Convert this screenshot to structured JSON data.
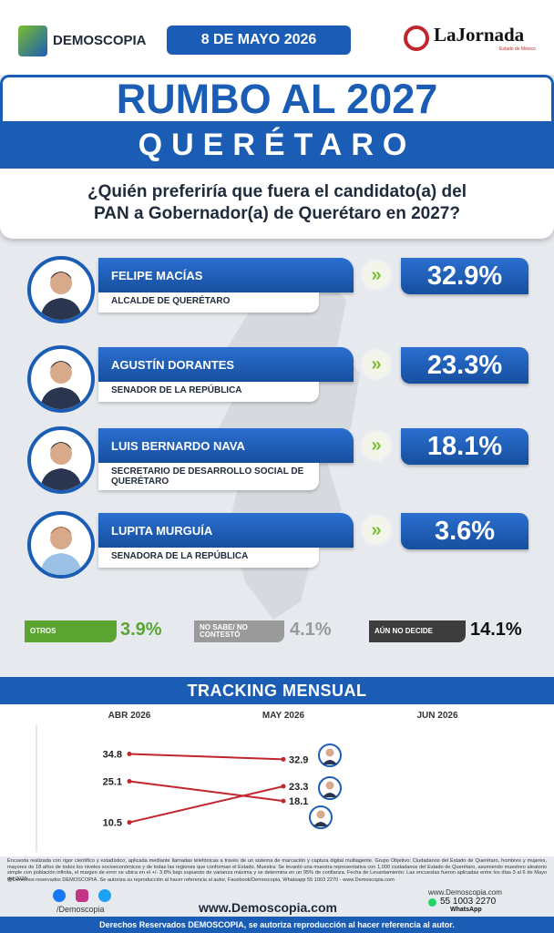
{
  "header": {
    "brand": "DEMOSCOPIA",
    "date": "8 DE MAYO 2026",
    "partner": "LaJornada",
    "partner_sub": "Estado de México",
    "title": "RUMBO AL 2027",
    "subtitle": "QUERÉTARO",
    "question": "¿Quién preferiría que fuera el candidato(a) del PAN a Gobernador(a) de Querétaro en 2027?"
  },
  "candidates": [
    {
      "name": "FELIPE MACÍAS",
      "role": "ALCALDE DE QUERÉTARO",
      "percent": "32.9%"
    },
    {
      "name": "AGUSTÍN DORANTES",
      "role": "SENADOR DE LA REPÚBLICA",
      "percent": "23.3%"
    },
    {
      "name": "LUIS BERNARDO NAVA",
      "role": "SECRETARIO DE DESARROLLO SOCIAL DE QUERÉTARO",
      "percent": "18.1%"
    },
    {
      "name": "LUPITA MURGUÍA",
      "role": "SENADORA DE LA REPÚBLICA",
      "percent": "3.6%"
    }
  ],
  "others": [
    {
      "label": "OTROS",
      "percent": "3.9%"
    },
    {
      "label": "NO SABE/ NO CONTESTÓ",
      "percent": "4.1%"
    },
    {
      "label": "AÚN NO DECIDE",
      "percent": "14.1%"
    }
  ],
  "chart_data": {
    "type": "line",
    "title": "TRACKING MENSUAL",
    "categories": [
      "ABR 2026",
      "MAY 2026",
      "JUN 2026"
    ],
    "series": [
      {
        "color": "#c0262c",
        "values": [
          34.8,
          32.9,
          null
        ]
      },
      {
        "color": "#c0262c",
        "values": [
          25.1,
          18.1,
          null
        ]
      },
      {
        "color": "#c0262c",
        "values": [
          10.5,
          23.3,
          null
        ]
      }
    ],
    "ylim": [
      0,
      45
    ]
  },
  "footer": {
    "methodology": "Encuesta realizada con rigor científico y estadístico, aplicada mediante llamadas telefónicas a través de un sistema de marcación y captura digital multiagente. Grupo Objetivo: Ciudadanos del Estado de Querétaro, hombres y mujeres, mayores de 18 años de todos los niveles socioeconómicos y de todas las regiones que conforman el Estado. Muestra: Se levantó una muestra representativa con 1,000 ciudadanos del Estado de Querétaro, asumiendo muestreo aleatorio simple con población infinita, el margen de error se ubica en el +/- 3.8% bajo supuesto de varianza máxima y se determina en un 95% de confianza. Fecha de Levantamiento: Las encuestas fueron aplicadas entre los días 3 al 6 de Mayo del 2026.",
    "rights_note": "@Derechos reservados DEMOSCOPIA. Se autoriza su reproducción al hacer referencia al autor, Facebook/Demoscopia, Whatsapp 55 1003 2270 - www.Demoscopia.com",
    "social": "/Demoscopia",
    "website": "www.Demoscopia.com",
    "website_small": "www.Demoscopia.com",
    "phone": "55 1003 2270",
    "whatsapp": "WhatsApp",
    "copyright": "Derechos Reservados DEMOSCOPIA, se autoriza reproducción al hacer referencia al autor."
  }
}
